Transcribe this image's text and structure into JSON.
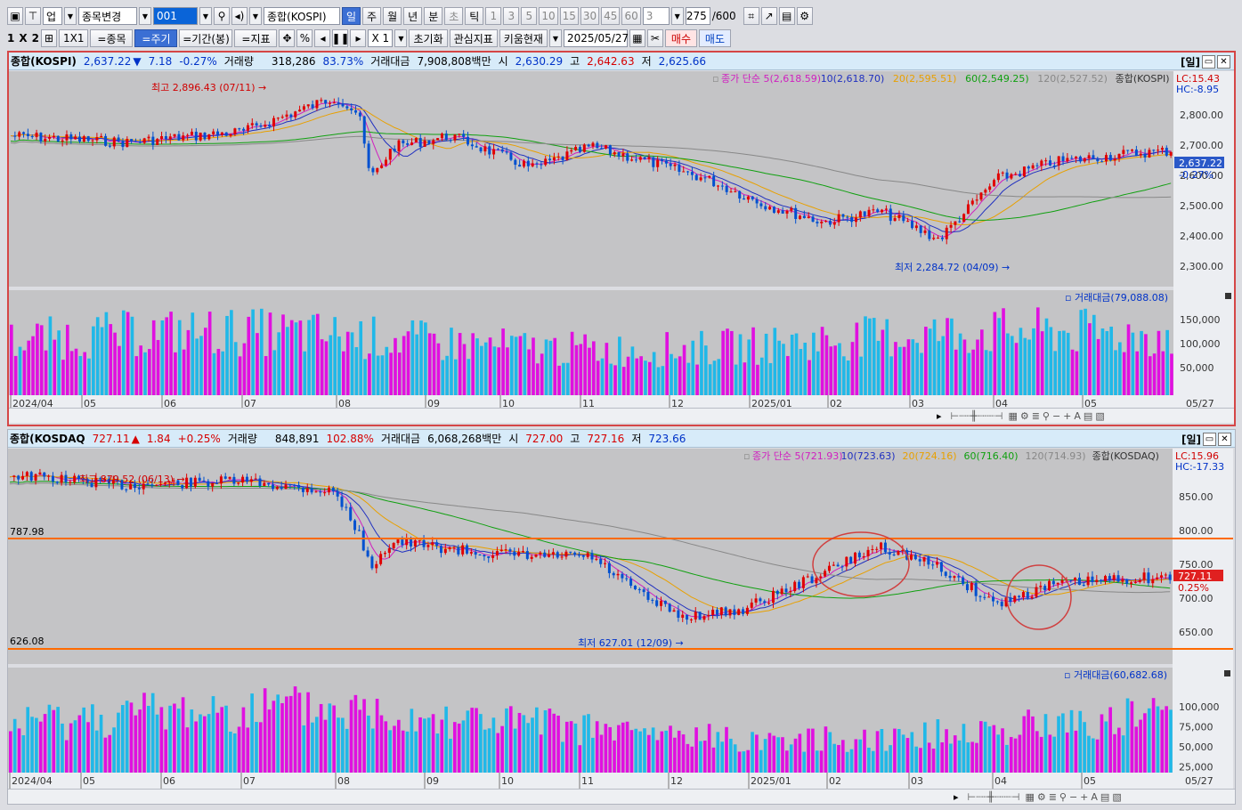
{
  "toolbar1": {
    "up_label": "업",
    "stock_change": "종목변경",
    "code": "001",
    "index_name": "종합(KOSPI)",
    "periods": [
      "일",
      "주",
      "월",
      "년",
      "분",
      "초",
      "틱"
    ],
    "nums": [
      "1",
      "3",
      "5",
      "10",
      "15",
      "30",
      "45",
      "60"
    ],
    "count": "3",
    "range": "275",
    "range_total": "/600"
  },
  "toolbar2": {
    "layout1": "1",
    "layout2": "X",
    "layout3": "2",
    "x1": "1X1",
    "stock": "=종목",
    "period_btn": "=주기",
    "range_btn": "=기간(봉)",
    "indicator": "=지표",
    "pct": "%",
    "mult": "X 1",
    "reset": "초기화",
    "watch": "관심지표",
    "kiwoom": "키움현재",
    "date": "2025/05/27",
    "buy": "매수",
    "sell": "매도"
  },
  "kospi": {
    "name": "종합(KOSPI)",
    "price": "2,637.22",
    "arrow": "▼",
    "change": "7.18",
    "change_pct": "-0.27%",
    "vol_label": "거래량",
    "volume": "318,286",
    "vol_pct": "83.73%",
    "amt_label": "거래대금",
    "amount": "7,908,808백만",
    "open_l": "시",
    "open": "2,630.29",
    "high_l": "고",
    "high": "2,642.63",
    "low_l": "저",
    "low": "2,625.66",
    "tag": "[일]",
    "ma_legend": [
      {
        "t": "종가 단순 5(2,618.59)",
        "c": "#d020c0"
      },
      {
        "t": "10(2,618.70)",
        "c": "#2030c0"
      },
      {
        "t": "20(2,595.51)",
        "c": "#e8a000"
      },
      {
        "t": "60(2,549.25)",
        "c": "#10a010"
      },
      {
        "t": "120(2,527.52)",
        "c": "#888888"
      },
      {
        "t": "종합(KOSPI)",
        "c": "#333333"
      }
    ],
    "lc": "LC:15.43",
    "hc": "HC:-8.95",
    "cur_box": "2,637.22",
    "cur_pct": "-0.27%",
    "axis": [
      "2,800.00",
      "2,700.00",
      "2,600.00",
      "2,500.00",
      "2,400.00",
      "2,300.00"
    ],
    "hi_note": "최고 2,896.43 (07/11)",
    "lo_note": "최저 2,284.72 (04/09)",
    "vol_legend": "거래대금(79,088.08)",
    "vol_axis": [
      "150,000",
      "100,000",
      "50,000"
    ],
    "dates": [
      "2024/04",
      "05",
      "06",
      "07",
      "08",
      "09",
      "10",
      "11",
      "12",
      "2025/01",
      "02",
      "03",
      "04",
      "05"
    ],
    "last_date": "05/27"
  },
  "kosdaq": {
    "name": "종합(KOSDAQ",
    "price": "727.11",
    "arrow": "▲",
    "change": "1.84",
    "change_pct": "+0.25%",
    "vol_label": "거래량",
    "volume": "848,891",
    "vol_pct": "102.88%",
    "amt_label": "거래대금",
    "amount": "6,068,268백만",
    "open_l": "시",
    "open": "727.00",
    "high_l": "고",
    "high": "727.16",
    "low_l": "저",
    "low": "723.66",
    "tag": "[일]",
    "ma_legend": [
      {
        "t": "종가 단순 5(721.93)",
        "c": "#d020c0"
      },
      {
        "t": "10(723.63)",
        "c": "#2030c0"
      },
      {
        "t": "20(724.16)",
        "c": "#e8a000"
      },
      {
        "t": "60(716.40)",
        "c": "#10a010"
      },
      {
        "t": "120(714.93)",
        "c": "#888888"
      },
      {
        "t": "종합(KOSDAQ)",
        "c": "#333333"
      }
    ],
    "lc": "LC:15.96",
    "hc": "HC:-17.33",
    "cur_box": "727.11",
    "cur_pct": "0.25%",
    "axis": [
      "850.00",
      "800.00",
      "750.00",
      "700.00",
      "650.00"
    ],
    "line_hi": "787.98",
    "line_lo": "626.08",
    "hi_note": "최고 879.52 (06/13)",
    "lo_note": "최저 627.01 (12/09)",
    "vol_legend": "거래대금(60,682.68)",
    "vol_axis": [
      "100,000",
      "75,000",
      "50,000",
      "25,000"
    ],
    "dates": [
      "2024/04",
      "05",
      "06",
      "07",
      "08",
      "09",
      "10",
      "11",
      "12",
      "2025/01",
      "02",
      "03",
      "04",
      "05"
    ],
    "last_date": "05/27"
  }
}
